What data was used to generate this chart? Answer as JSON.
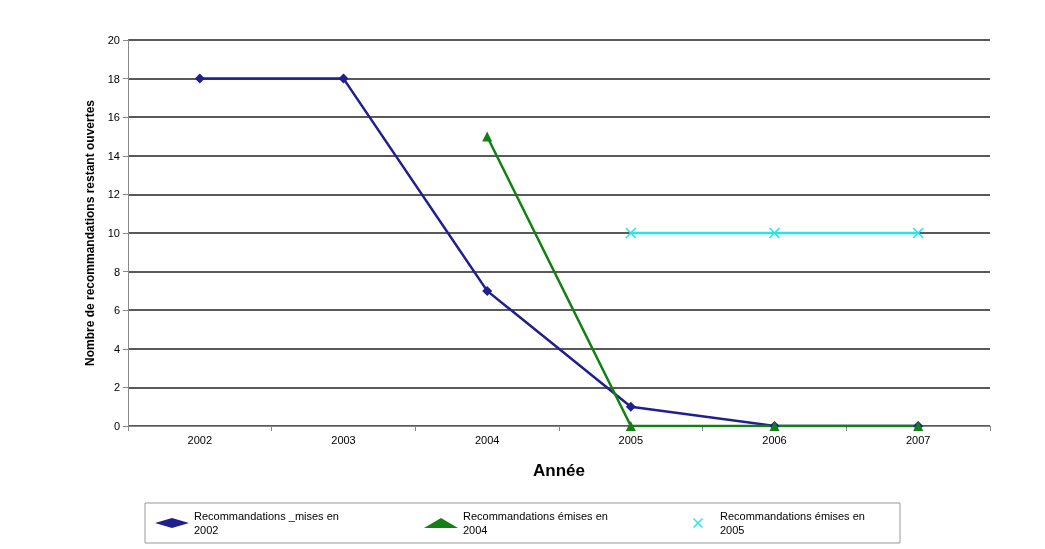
{
  "chart_data": {
    "type": "line",
    "xlabel": "Année",
    "ylabel": "Nombre de recommandations restant ouvertes",
    "categories": [
      "2002",
      "2003",
      "2004",
      "2005",
      "2006",
      "2007"
    ],
    "ylim": [
      0,
      20
    ],
    "yticks": [
      0,
      2,
      4,
      6,
      8,
      10,
      12,
      14,
      16,
      18,
      20
    ],
    "grid": "y",
    "legend": "bottom",
    "line_style": "solid",
    "series": [
      {
        "name": "Recommandations _mises en 2002",
        "color": "#1f1f8f",
        "marker": "diamond",
        "values": [
          18,
          18,
          7,
          1,
          0,
          0
        ]
      },
      {
        "name": "Recommandations émises en 2004",
        "color": "#138013",
        "marker": "triangle",
        "values": [
          null,
          null,
          15,
          0,
          0,
          0
        ]
      },
      {
        "name": "Recommandations émises en 2005",
        "color": "#22e5f0",
        "marker": "cross",
        "values": [
          null,
          null,
          null,
          10,
          10,
          10
        ]
      }
    ]
  }
}
